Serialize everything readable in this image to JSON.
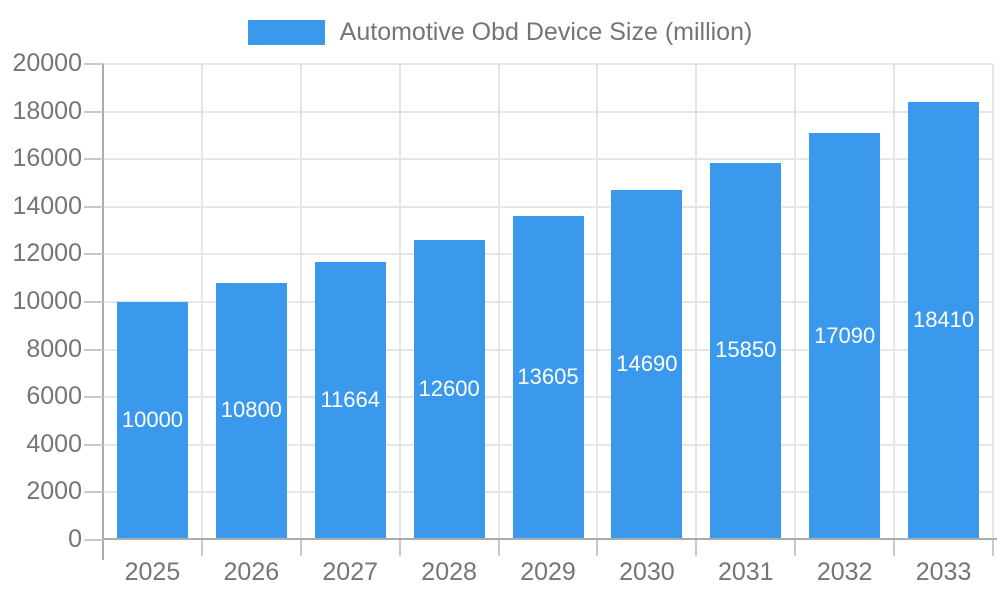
{
  "legend": {
    "label": "Automotive Obd Device Size (million)"
  },
  "chart_data": {
    "type": "bar",
    "title": "Automotive Obd Device Size (million)",
    "xlabel": "",
    "ylabel": "",
    "categories": [
      "2025",
      "2026",
      "2027",
      "2028",
      "2029",
      "2030",
      "2031",
      "2032",
      "2033"
    ],
    "series": [
      {
        "name": "Automotive Obd Device Size (million)",
        "values": [
          10000,
          10800,
          11664,
          12600,
          13605,
          14690,
          15850,
          17090,
          18410
        ]
      }
    ],
    "bar_labels_inside": true,
    "ylim": [
      0,
      20000
    ],
    "yticks": [
      0,
      2000,
      4000,
      6000,
      8000,
      10000,
      12000,
      14000,
      16000,
      18000,
      20000
    ],
    "grid": true,
    "legend_position": "top",
    "colors": {
      "bar": "#3A99ED",
      "grid": "#e6e6e6",
      "axis": "#ababab",
      "tick": "#c9c9c9",
      "axis_text": "#757575",
      "bar_label_text": "#ffffff",
      "background": "#ffffff"
    }
  }
}
